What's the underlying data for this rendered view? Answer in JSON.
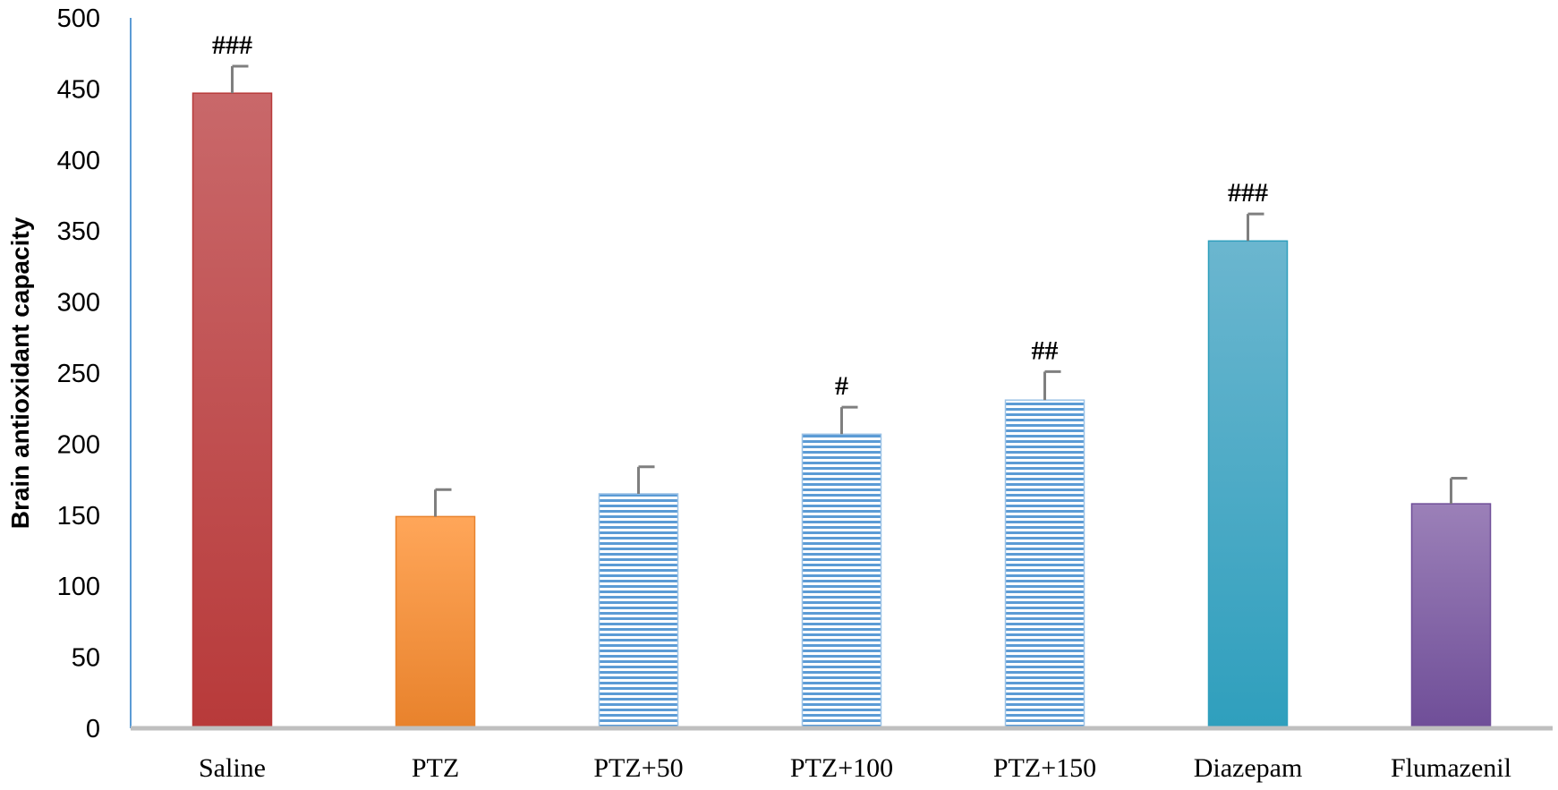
{
  "chart_data": {
    "type": "bar",
    "title": "",
    "xlabel": "",
    "ylabel": "Brain antioxidant capacity",
    "ylim": [
      0,
      500
    ],
    "yticks": [
      0,
      50,
      100,
      150,
      200,
      250,
      300,
      350,
      400,
      450,
      500
    ],
    "grid": false,
    "legend": "none",
    "categories": [
      "Saline",
      "PTZ",
      "PTZ+50",
      "PTZ+100",
      "PTZ+150",
      "Diazepam",
      "Flumazenil"
    ],
    "values": [
      447,
      149,
      165,
      207,
      231,
      343,
      158
    ],
    "errors": [
      19,
      19,
      19,
      19,
      20,
      19,
      18
    ],
    "annotations": [
      "###",
      "",
      "",
      "#",
      "##",
      "###",
      ""
    ],
    "bar_colors": [
      {
        "top": "#c9686a",
        "bottom": "#b83a3a",
        "pattern": "solid"
      },
      {
        "top": "#ffa659",
        "bottom": "#e8822c",
        "pattern": "solid"
      },
      {
        "top": "#5b9bd5",
        "bottom": "#5b9bd5",
        "pattern": "horizontal-stripes"
      },
      {
        "top": "#5b9bd5",
        "bottom": "#5b9bd5",
        "pattern": "horizontal-stripes"
      },
      {
        "top": "#5b9bd5",
        "bottom": "#5b9bd5",
        "pattern": "horizontal-stripes"
      },
      {
        "top": "#6bb6cf",
        "bottom": "#2f9fbd",
        "pattern": "solid"
      },
      {
        "top": "#9b80b8",
        "bottom": "#6f4e98",
        "pattern": "solid"
      }
    ],
    "axis_colors": {
      "y_axis": "#5b9bd5",
      "x_axis": "#bfbfbf",
      "error_bar": "#7f7f7f"
    }
  }
}
